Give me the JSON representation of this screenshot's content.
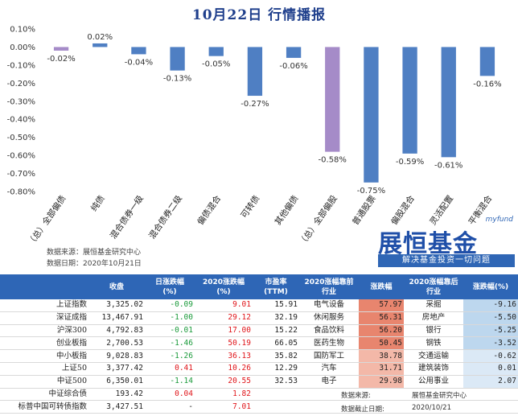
{
  "title": "10月22日  行情播报",
  "chart_data": {
    "type": "bar",
    "categories": [
      "（总）全部偏债",
      "纯债",
      "混合债券一级",
      "混合债券二级",
      "偏债混合",
      "可转债",
      "其他偏债",
      "（总）全部偏股",
      "普通股票",
      "偏股混合",
      "灵活配置",
      "平衡混合"
    ],
    "values": [
      -0.02,
      0.02,
      -0.04,
      -0.13,
      -0.05,
      -0.27,
      -0.06,
      -0.58,
      -0.75,
      -0.59,
      -0.61,
      -0.16
    ],
    "data_labels": [
      "-0.02%",
      "0.02%",
      "-0.04%",
      "-0.13%",
      "-0.05%",
      "-0.27%",
      "-0.06%",
      "-0.58%",
      "-0.75%",
      "-0.59%",
      "-0.61%",
      "-0.16%"
    ],
    "highlight_categories": [
      "（总）全部偏债",
      "（总）全部偏股"
    ],
    "ylim": [
      -0.8,
      0.1
    ],
    "yticks": [
      "0.10%",
      "0.00%",
      "-0.10%",
      "-0.20%",
      "-0.30%",
      "-0.40%",
      "-0.50%",
      "-0.60%",
      "-0.70%",
      "-0.80%"
    ],
    "colors": {
      "bar": "#4f7fc3",
      "highlight": "#a58bc8"
    },
    "grid": false
  },
  "source": {
    "line1": "数据来源：展恒基金研究中心",
    "line2": "数据日期：2020年10月21日"
  },
  "logo": {
    "brand": "myfund",
    "name": "展恒基金",
    "slogan": "解决基金投资一切问题"
  },
  "table": {
    "headers": [
      "",
      "收盘",
      "日涨跌幅\n(%)",
      "2020涨跌幅\n(%)",
      "市盈率\n(TTM)",
      "2020涨幅靠前\n行业",
      "涨跌幅",
      "2020涨幅靠后\n行业",
      "涨跌幅(%)"
    ],
    "rows": [
      {
        "name": "上证指数",
        "close": "3,325.02",
        "day": "-0.09",
        "ytd": "9.01",
        "pe": "15.91",
        "top_ind": "电气设备",
        "top_val": "57.97",
        "bot_ind": "采掘",
        "bot_val": "-9.16"
      },
      {
        "name": "深证成指",
        "close": "13,467.91",
        "day": "-1.00",
        "ytd": "29.12",
        "pe": "32.19",
        "top_ind": "休闲服务",
        "top_val": "56.31",
        "bot_ind": "房地产",
        "bot_val": "-5.50"
      },
      {
        "name": "沪深300",
        "close": "4,792.83",
        "day": "-0.01",
        "ytd": "17.00",
        "pe": "15.22",
        "top_ind": "食品饮料",
        "top_val": "56.20",
        "bot_ind": "银行",
        "bot_val": "-5.25"
      },
      {
        "name": "创业板指",
        "close": "2,700.53",
        "day": "-1.46",
        "ytd": "50.19",
        "pe": "66.05",
        "top_ind": "医药生物",
        "top_val": "50.45",
        "bot_ind": "钢铁",
        "bot_val": "-3.52"
      },
      {
        "name": "中小板指",
        "close": "9,028.83",
        "day": "-1.26",
        "ytd": "36.13",
        "pe": "35.82",
        "top_ind": "国防军工",
        "top_val": "38.78",
        "bot_ind": "交通运输",
        "bot_val": "-0.62"
      },
      {
        "name": "上证50",
        "close": "3,377.42",
        "day": "0.41",
        "ytd": "10.26",
        "pe": "12.29",
        "top_ind": "汽车",
        "top_val": "31.71",
        "bot_ind": "建筑装饰",
        "bot_val": "0.01"
      },
      {
        "name": "中证500",
        "close": "6,350.01",
        "day": "-1.14",
        "ytd": "20.55",
        "pe": "32.53",
        "top_ind": "电子",
        "top_val": "29.98",
        "bot_ind": "公用事业",
        "bot_val": "2.07"
      },
      {
        "name": "中证综合债",
        "close": "193.42",
        "day": "0.04",
        "ytd": "1.82",
        "pe": "",
        "top_ind": "",
        "top_val": "",
        "bot_ind": "",
        "bot_val": ""
      },
      {
        "name": "标普中国可转债指数",
        "close": "3,427.51",
        "day": "-",
        "ytd": "7.01",
        "pe": "",
        "top_ind": "",
        "top_val": "",
        "bot_ind": "",
        "bot_val": ""
      }
    ],
    "footer_src_label": "数据来源:",
    "footer_src_value": "展恒基金研究中心",
    "footer_date_label": "数据截止日期:",
    "footer_date_value": "2020/10/21"
  }
}
